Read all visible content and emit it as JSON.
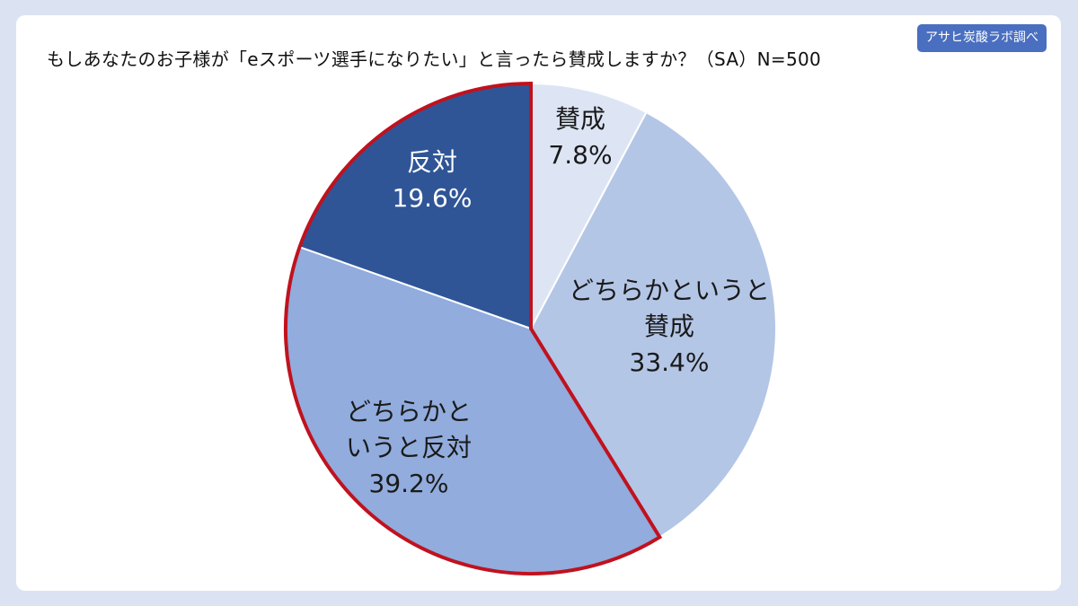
{
  "colors": {
    "background": "#dbe3f3",
    "card": "#ffffff",
    "badge": "#4a6fc0",
    "highlight_outline": "#c0121e"
  },
  "badge": {
    "label": "アサヒ炭酸ラボ調べ"
  },
  "chart_data": {
    "type": "pie",
    "title": "もしあなたのお子様が「eスポーツ選手になりたい」と言ったら賛成しますか？（SA）N=500",
    "slices": [
      {
        "label_lines": [
          "賛成"
        ],
        "value": 7.8,
        "value_text": "7.8%",
        "color": "#dde5f5",
        "text_color": "#1a1a1a"
      },
      {
        "label_lines": [
          "どちらかというと",
          "賛成"
        ],
        "value": 33.4,
        "value_text": "33.4%",
        "color": "#b4c6e6",
        "text_color": "#1a1a1a"
      },
      {
        "label_lines": [
          "どちらかと",
          "いうと反対"
        ],
        "value": 39.2,
        "value_text": "39.2%",
        "color": "#91acdd",
        "text_color": "#1a1a1a",
        "highlight": true
      },
      {
        "label_lines": [
          "反対"
        ],
        "value": 19.6,
        "value_text": "19.6%",
        "color": "#2f5597",
        "text_color": "#ffffff",
        "highlight": true
      }
    ],
    "start": "12 o'clock",
    "direction": "clockwise"
  }
}
